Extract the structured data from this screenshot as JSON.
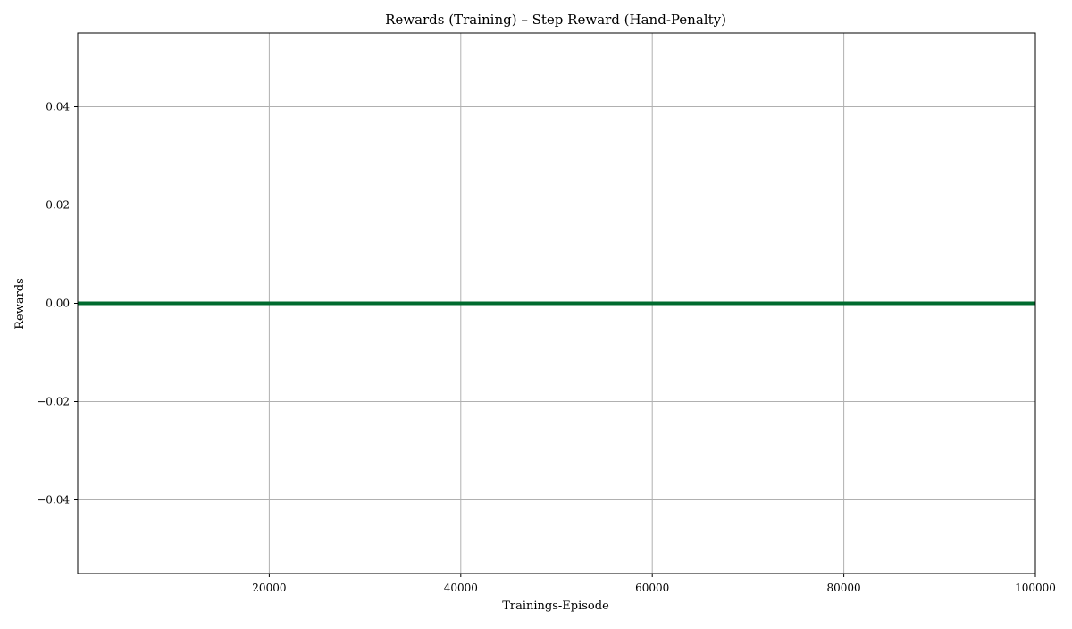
{
  "chart_data": {
    "type": "line",
    "title": "Rewards (Training) – Step Reward (Hand-Penalty)",
    "xlabel": "Trainings-Episode",
    "ylabel": "Rewards",
    "xlim": [
      0,
      100000
    ],
    "ylim": [
      -0.055,
      0.055
    ],
    "grid": true,
    "legend": "none",
    "x_ticks": [
      {
        "value": 20000,
        "label": "20000"
      },
      {
        "value": 40000,
        "label": "40000"
      },
      {
        "value": 60000,
        "label": "60000"
      },
      {
        "value": 80000,
        "label": "80000"
      },
      {
        "value": 100000,
        "label": "100000"
      }
    ],
    "y_ticks": [
      {
        "value": 0.04,
        "label": "0.04"
      },
      {
        "value": 0.02,
        "label": "0.02"
      },
      {
        "value": 0.0,
        "label": "0.00"
      },
      {
        "value": -0.02,
        "label": "−0.02"
      },
      {
        "value": -0.04,
        "label": "−0.04"
      }
    ],
    "series": [
      {
        "color": "#006b2e",
        "points": [
          [
            0,
            0.0
          ],
          [
            100000,
            0.0
          ]
        ]
      }
    ]
  }
}
